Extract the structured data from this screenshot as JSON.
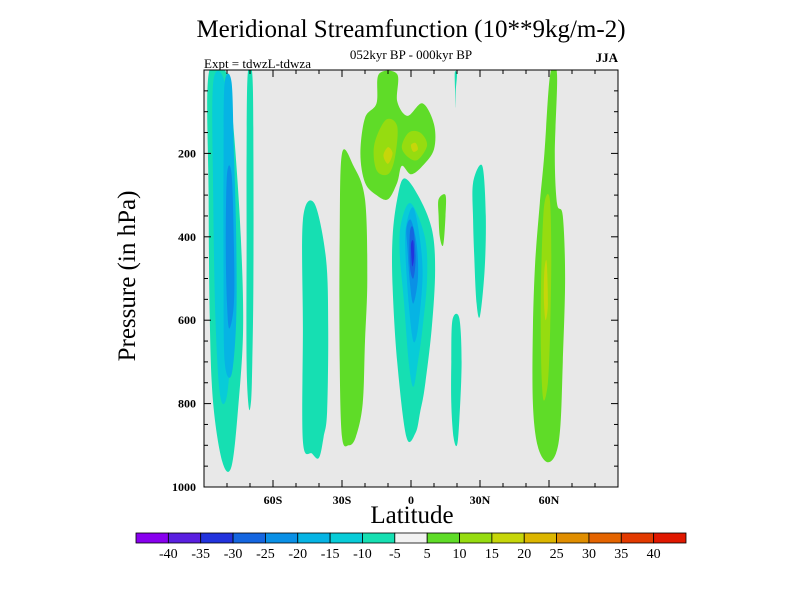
{
  "chart_data": {
    "type": "contour",
    "title": "Meridional Streamfunction (10**9kg/m-2)",
    "subtitle": "052kyr BP - 000kyr BP",
    "experiment": "Expt = tdwzL-tdwza",
    "season": "JJA",
    "xlabel": "Latitude",
    "ylabel": "Pressure (in hPa)",
    "xlim": [
      -90,
      90
    ],
    "ylim": [
      1000,
      0
    ],
    "x_ticks": [
      {
        "value": -60,
        "label": "60S"
      },
      {
        "value": -30,
        "label": "30S"
      },
      {
        "value": 0,
        "label": "0"
      },
      {
        "value": 30,
        "label": "30N"
      },
      {
        "value": 60,
        "label": "60N"
      }
    ],
    "y_ticks": [
      {
        "value": 200,
        "label": "200"
      },
      {
        "value": 400,
        "label": "400"
      },
      {
        "value": 600,
        "label": "600"
      },
      {
        "value": 800,
        "label": "800"
      },
      {
        "value": 1000,
        "label": "1000"
      }
    ],
    "plot_background": "#e8e8e8",
    "colorbar": {
      "levels": [
        -40,
        -35,
        -30,
        -25,
        -20,
        -15,
        -10,
        -5,
        5,
        10,
        15,
        20,
        25,
        30,
        35,
        40
      ],
      "labels": [
        "-40",
        "-35",
        "-30",
        "-25",
        "-20",
        "-15",
        "-10",
        "-5",
        "5",
        "10",
        "15",
        "20",
        "25",
        "30",
        "35",
        "40"
      ],
      "colors": [
        "#8800ee",
        "#5a1fe0",
        "#2233dd",
        "#1566e0",
        "#0a90e6",
        "#06b4e4",
        "#08ccd8",
        "#16dfb2",
        "#f2f2f2",
        "#5fdc28",
        "#96dc10",
        "#c6d60a",
        "#dcb600",
        "#e08e00",
        "#e46400",
        "#e23a00",
        "#e01800"
      ]
    },
    "regions": [
      {
        "color": "#16dfb2",
        "points": [
          [
            -88,
            10
          ],
          [
            -80,
            10
          ],
          [
            -77,
            150
          ],
          [
            -74,
            400
          ],
          [
            -73,
            620
          ],
          [
            -75,
            800
          ],
          [
            -78,
            950
          ],
          [
            -82,
            940
          ],
          [
            -86,
            800
          ],
          [
            -87.5,
            600
          ],
          [
            -88,
            300
          ]
        ]
      },
      {
        "color": "#08ccd8",
        "points": [
          [
            -86,
            30
          ],
          [
            -81,
            30
          ],
          [
            -79,
            200
          ],
          [
            -78,
            400
          ],
          [
            -78,
            620
          ],
          [
            -80,
            780
          ],
          [
            -83,
            780
          ],
          [
            -85,
            600
          ],
          [
            -86,
            300
          ]
        ]
      },
      {
        "color": "#06b4e4",
        "points": [
          [
            -81,
            30
          ],
          [
            -78,
            30
          ],
          [
            -77,
            200
          ],
          [
            -76,
            400
          ],
          [
            -76,
            600
          ],
          [
            -78,
            730
          ],
          [
            -81,
            700
          ],
          [
            -81.5,
            500
          ],
          [
            -81.5,
            200
          ]
        ]
      },
      {
        "color": "#0a90e6",
        "points": [
          [
            -80,
            250
          ],
          [
            -78,
            250
          ],
          [
            -77,
            420
          ],
          [
            -77,
            560
          ],
          [
            -79,
            620
          ],
          [
            -80,
            560
          ],
          [
            -80.5,
            420
          ]
        ]
      },
      {
        "color": "#16dfb2",
        "points": [
          [
            -71,
            10
          ],
          [
            -69,
            10
          ],
          [
            -68.5,
            200
          ],
          [
            -68.5,
            500
          ],
          [
            -69,
            700
          ],
          [
            -69.5,
            790
          ],
          [
            -70.5,
            810
          ],
          [
            -71.5,
            700
          ],
          [
            -71.5,
            400
          ],
          [
            -71.5,
            200
          ]
        ]
      },
      {
        "color": "#16dfb2",
        "points": [
          [
            -47,
            360
          ],
          [
            -42,
            320
          ],
          [
            -37,
            450
          ],
          [
            -36,
            620
          ],
          [
            -36.5,
            820
          ],
          [
            -38,
            880
          ],
          [
            -40,
            930
          ],
          [
            -43,
            920
          ],
          [
            -47,
            890
          ],
          [
            -47,
            620
          ]
        ]
      },
      {
        "color": "#5fdc28",
        "points": [
          [
            -30,
            200
          ],
          [
            -25,
            230
          ],
          [
            -20,
            310
          ],
          [
            -19,
            500
          ],
          [
            -20,
            650
          ],
          [
            -21,
            800
          ],
          [
            -24,
            880
          ],
          [
            -27,
            900
          ],
          [
            -30,
            880
          ],
          [
            -31,
            700
          ],
          [
            -31,
            400
          ]
        ]
      },
      {
        "color": "#5fdc28",
        "points": [
          [
            -14,
            10
          ],
          [
            -6,
            10
          ],
          [
            -6,
            75
          ],
          [
            -1.5,
            110
          ],
          [
            5,
            80
          ],
          [
            10,
            130
          ],
          [
            10,
            190
          ],
          [
            5,
            230
          ],
          [
            0,
            250
          ],
          [
            -4,
            230
          ],
          [
            -6,
            270
          ],
          [
            -10,
            310
          ],
          [
            -15,
            300
          ],
          [
            -20,
            270
          ],
          [
            -22,
            200
          ],
          [
            -20,
            115
          ],
          [
            -15,
            80
          ]
        ]
      },
      {
        "color": "#96dc10",
        "points": [
          [
            -16,
            180
          ],
          [
            -11,
            120
          ],
          [
            -6,
            135
          ],
          [
            -7,
            210
          ],
          [
            -10,
            250
          ],
          [
            -15,
            240
          ]
        ]
      },
      {
        "color": "#c6d60a",
        "points": [
          [
            -12,
            205
          ],
          [
            -10,
            185
          ],
          [
            -8,
            200
          ],
          [
            -10,
            225
          ]
        ]
      },
      {
        "color": "#96dc10",
        "points": [
          [
            -4,
            185
          ],
          [
            -1,
            150
          ],
          [
            4,
            150
          ],
          [
            7,
            180
          ],
          [
            3,
            215
          ],
          [
            -1,
            210
          ]
        ]
      },
      {
        "color": "#c6d60a",
        "points": [
          [
            0,
            180
          ],
          [
            2,
            175
          ],
          [
            3,
            190
          ],
          [
            1,
            196
          ]
        ]
      },
      {
        "color": "#16dfb2",
        "points": [
          [
            19,
            10
          ],
          [
            20,
            10
          ],
          [
            19.5,
            50
          ],
          [
            19.5,
            90
          ]
        ]
      },
      {
        "color": "#16dfb2",
        "points": [
          [
            -6,
            310
          ],
          [
            -3,
            260
          ],
          [
            3,
            300
          ],
          [
            9,
            380
          ],
          [
            10.5,
            480
          ],
          [
            9,
            620
          ],
          [
            6,
            760
          ],
          [
            4,
            820
          ],
          [
            2,
            870
          ],
          [
            -2,
            880
          ],
          [
            -6,
            700
          ],
          [
            -8,
            520
          ],
          [
            -8,
            400
          ]
        ]
      },
      {
        "color": "#08ccd8",
        "points": [
          [
            -4,
            360
          ],
          [
            0,
            320
          ],
          [
            6,
            400
          ],
          [
            7,
            500
          ],
          [
            5,
            620
          ],
          [
            3,
            700
          ],
          [
            1,
            760
          ],
          [
            -1,
            700
          ],
          [
            -3,
            560
          ],
          [
            -5,
            430
          ]
        ]
      },
      {
        "color": "#06b4e4",
        "points": [
          [
            -2,
            370
          ],
          [
            1,
            330
          ],
          [
            4,
            410
          ],
          [
            5,
            500
          ],
          [
            3,
            620
          ],
          [
            1,
            650
          ],
          [
            -1,
            560
          ],
          [
            -2.5,
            430
          ]
        ]
      },
      {
        "color": "#0a90e6",
        "points": [
          [
            -2,
            380
          ],
          [
            0,
            360
          ],
          [
            2.5,
            420
          ],
          [
            3,
            500
          ],
          [
            1,
            560
          ],
          [
            -0.5,
            510
          ],
          [
            -1.5,
            430
          ]
        ]
      },
      {
        "color": "#1566e0",
        "points": [
          [
            -0.5,
            390
          ],
          [
            1,
            380
          ],
          [
            2,
            450
          ],
          [
            1,
            500
          ],
          [
            -0.5,
            470
          ]
        ]
      },
      {
        "color": "#2233dd",
        "points": [
          [
            0,
            420
          ],
          [
            1,
            410
          ],
          [
            1.3,
            450
          ],
          [
            0.5,
            470
          ]
        ]
      },
      {
        "color": "#5fdc28",
        "points": [
          [
            12,
            310
          ],
          [
            15,
            300
          ],
          [
            15,
            350
          ],
          [
            14,
            420
          ],
          [
            12.5,
            400
          ],
          [
            12,
            350
          ]
        ]
      },
      {
        "color": "#16dfb2",
        "points": [
          [
            18,
            600
          ],
          [
            21,
            595
          ],
          [
            22,
            700
          ],
          [
            21,
            840
          ],
          [
            20,
            900
          ],
          [
            18.5,
            880
          ],
          [
            17.5,
            800
          ],
          [
            17.5,
            700
          ]
        ]
      },
      {
        "color": "#16dfb2",
        "points": [
          [
            27,
            270
          ],
          [
            31,
            230
          ],
          [
            32.5,
            350
          ],
          [
            32,
            480
          ],
          [
            30,
            590
          ],
          [
            28.5,
            560
          ],
          [
            27.5,
            450
          ],
          [
            27,
            360
          ]
        ]
      },
      {
        "color": "#5fdc28",
        "points": [
          [
            60.5,
            10
          ],
          [
            63.5,
            10
          ],
          [
            62.5,
            200
          ],
          [
            63.5,
            320
          ],
          [
            66,
            350
          ],
          [
            67,
            500
          ],
          [
            66,
            700
          ],
          [
            65,
            850
          ],
          [
            63,
            920
          ],
          [
            59,
            940
          ],
          [
            55,
            900
          ],
          [
            53,
            800
          ],
          [
            53,
            620
          ],
          [
            54,
            460
          ],
          [
            56,
            320
          ],
          [
            58,
            200
          ]
        ]
      },
      {
        "color": "#96dc10",
        "points": [
          [
            57.5,
            350
          ],
          [
            59,
            300
          ],
          [
            60.5,
            320
          ],
          [
            61,
            450
          ],
          [
            60.5,
            620
          ],
          [
            59.5,
            750
          ],
          [
            57.5,
            790
          ],
          [
            56.5,
            680
          ],
          [
            56.5,
            520
          ]
        ]
      },
      {
        "color": "#c6d60a",
        "points": [
          [
            58,
            480
          ],
          [
            59,
            460
          ],
          [
            59.5,
            560
          ],
          [
            58.5,
            600
          ],
          [
            57.8,
            550
          ]
        ]
      }
    ]
  }
}
